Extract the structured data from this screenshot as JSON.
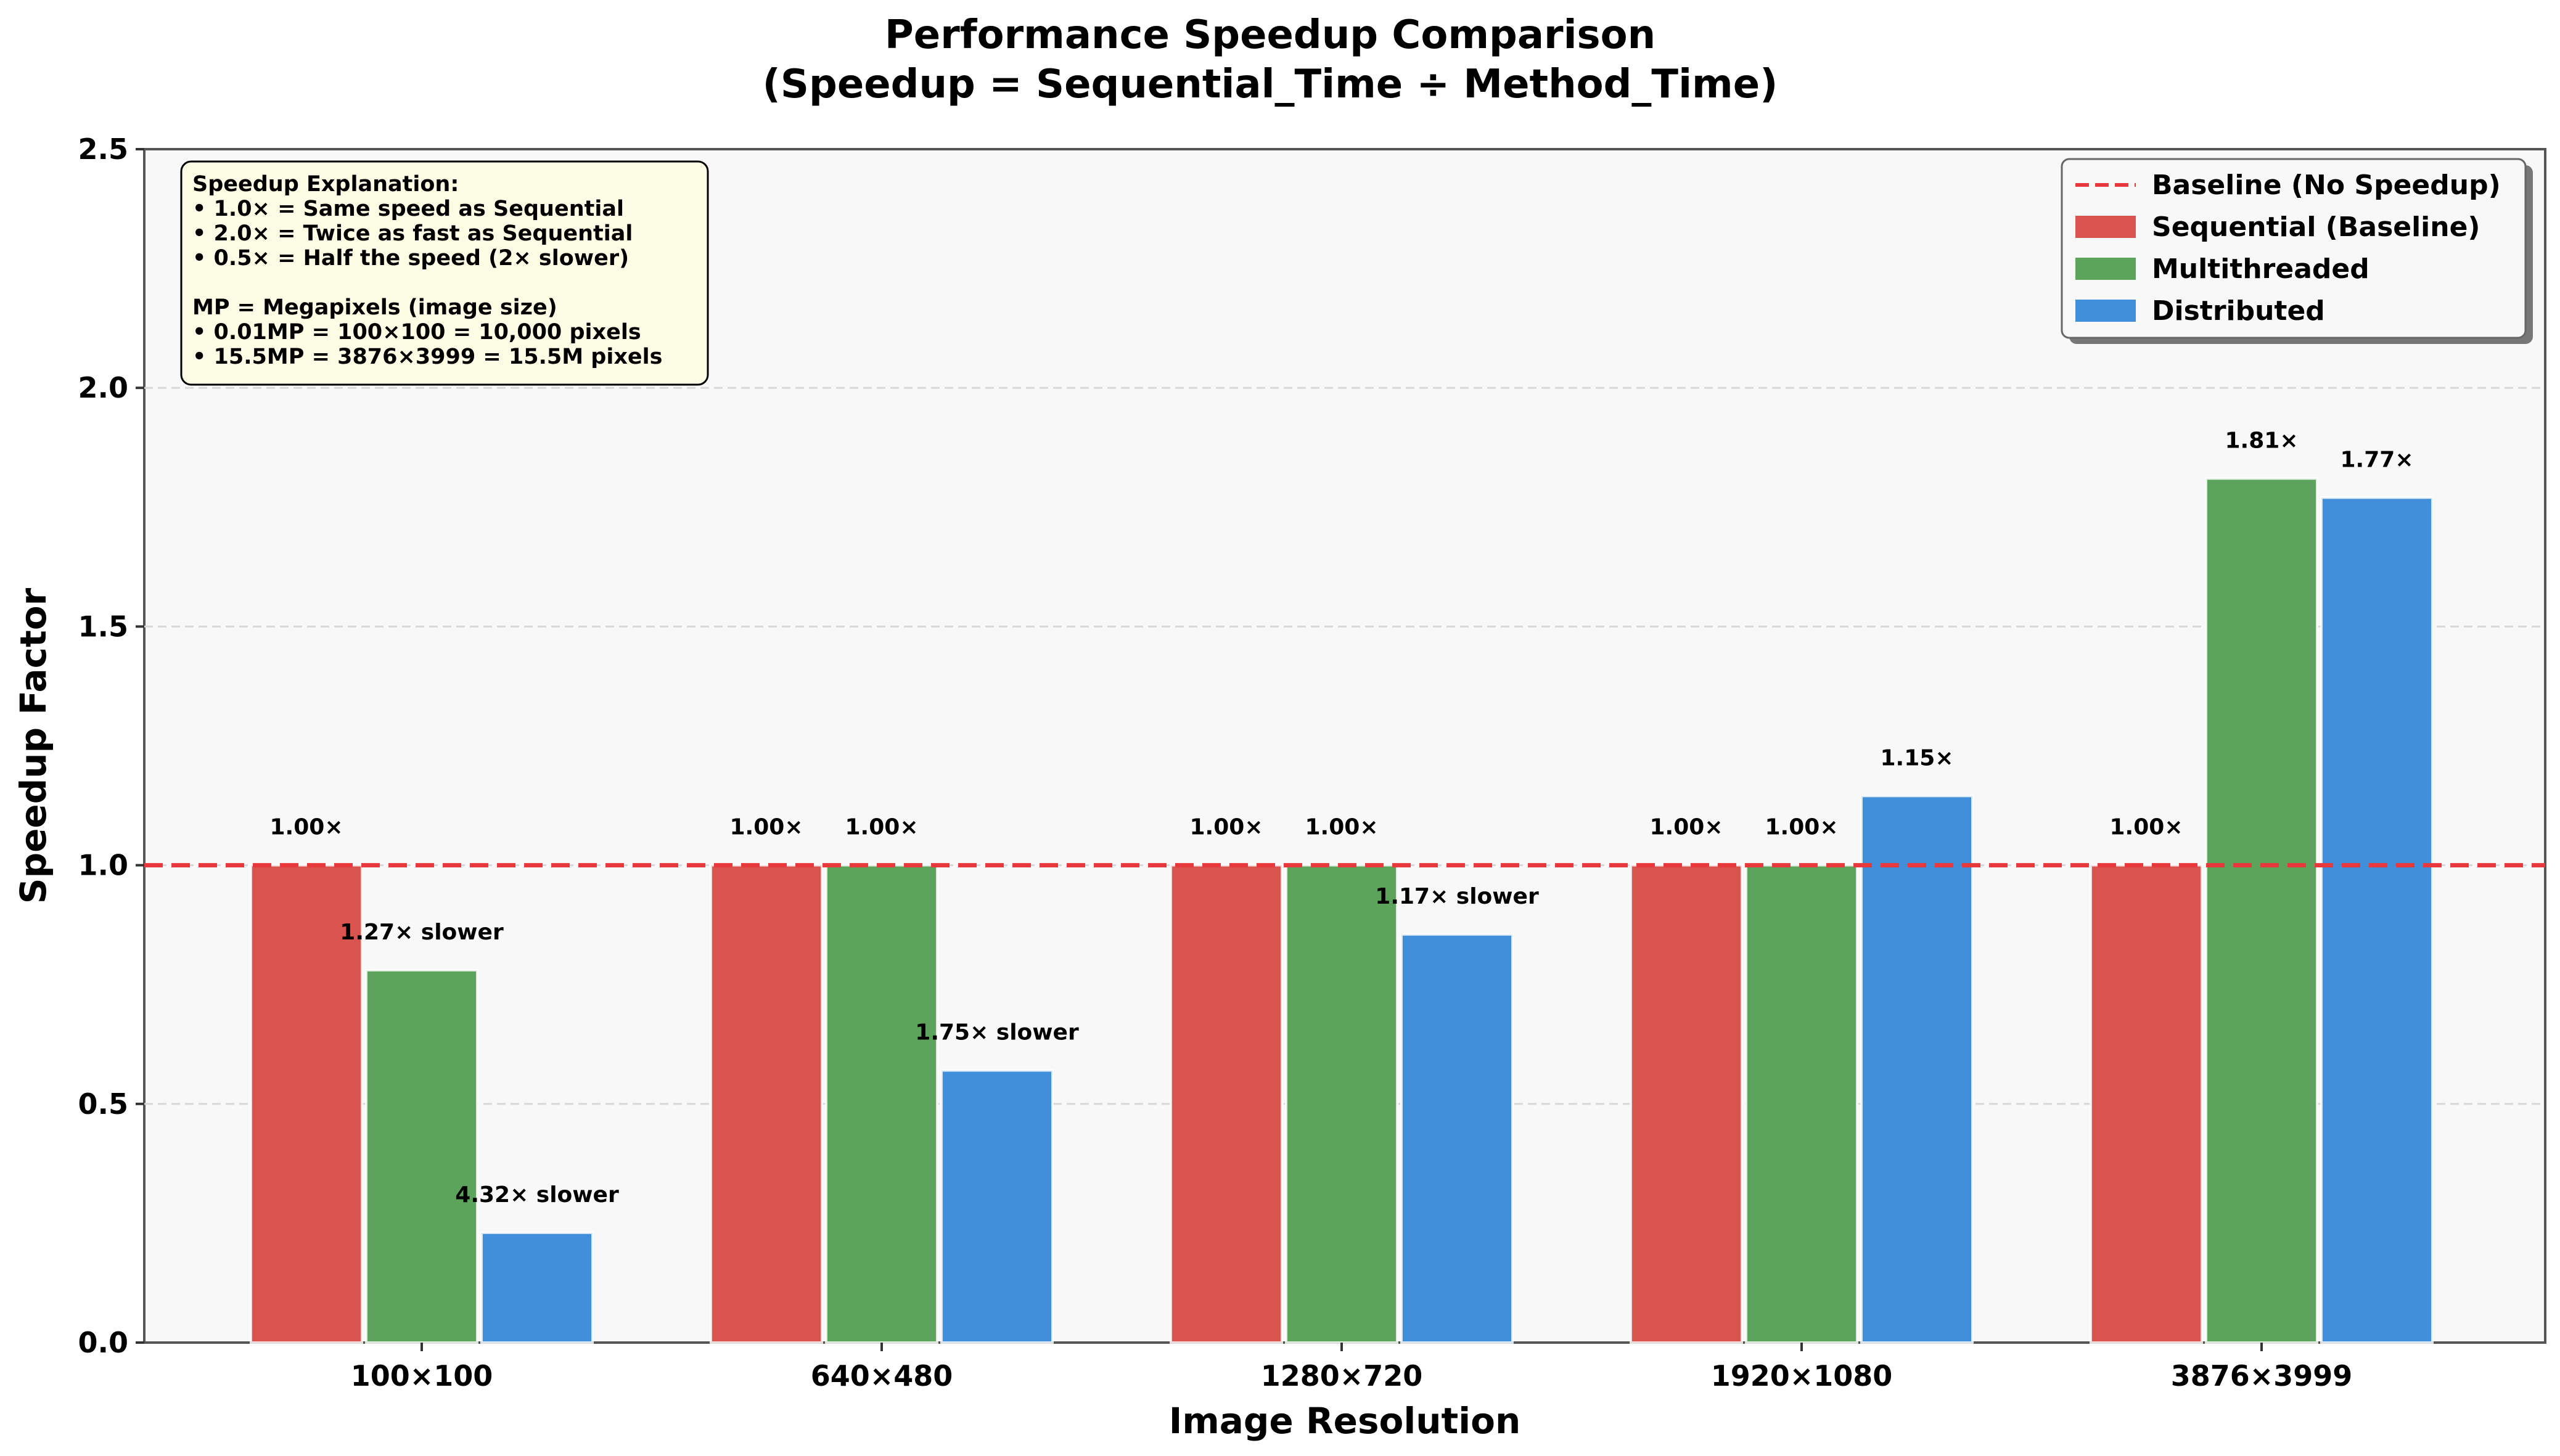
{
  "chart_data": {
    "type": "bar",
    "title": [
      "Performance Speedup Comparison",
      "(Speedup = Sequential_Time ÷ Method_Time)"
    ],
    "xlabel": "Image Resolution",
    "ylabel": "Speedup Factor",
    "ylim": [
      0,
      2.5
    ],
    "yticks": [
      "0.0",
      "0.5",
      "1.0",
      "1.5",
      "2.0",
      "2.5"
    ],
    "grid": "horizontal dashed",
    "categories": [
      "100×100",
      "640×480",
      "1280×720",
      "1920×1080",
      "3876×3999"
    ],
    "series": [
      {
        "name": "Sequential (Baseline)",
        "color": "#d9534f",
        "values": [
          1.0,
          1.0,
          1.0,
          1.0,
          1.0
        ],
        "labels": [
          "1.00×",
          "1.00×",
          "1.00×",
          "1.00×",
          "1.00×"
        ]
      },
      {
        "name": "Multithreaded",
        "color": "#5ca35c",
        "values": [
          0.78,
          1.0,
          1.0,
          1.0,
          1.81
        ],
        "labels": [
          "1.27× slower",
          "1.00×",
          "1.00×",
          "1.00×",
          "1.81×"
        ]
      },
      {
        "name": "Distributed",
        "color": "#418fda",
        "values": [
          0.23,
          0.57,
          0.855,
          1.145,
          1.77
        ],
        "labels": [
          "4.32× slower",
          "1.75× slower",
          "1.17× slower",
          "1.15×",
          "1.77×"
        ]
      }
    ],
    "baseline": {
      "value": 1.0,
      "name": "Baseline (No Speedup)",
      "color": "#e8383b"
    },
    "legend_position": "top-right",
    "legend": [
      "Baseline (No Speedup)",
      "Sequential (Baseline)",
      "Multithreaded",
      "Distributed"
    ],
    "annotation": [
      "Speedup Explanation:",
      "• 1.0× = Same speed as Sequential",
      "• 2.0× = Twice as fast as Sequential",
      "• 0.5× = Half the speed (2× slower)",
      "",
      "MP = Megapixels (image size)",
      "• 0.01MP = 100×100 = 10,000 pixels",
      "• 15.5MP = 3876×3999 = 15.5M pixels"
    ]
  }
}
